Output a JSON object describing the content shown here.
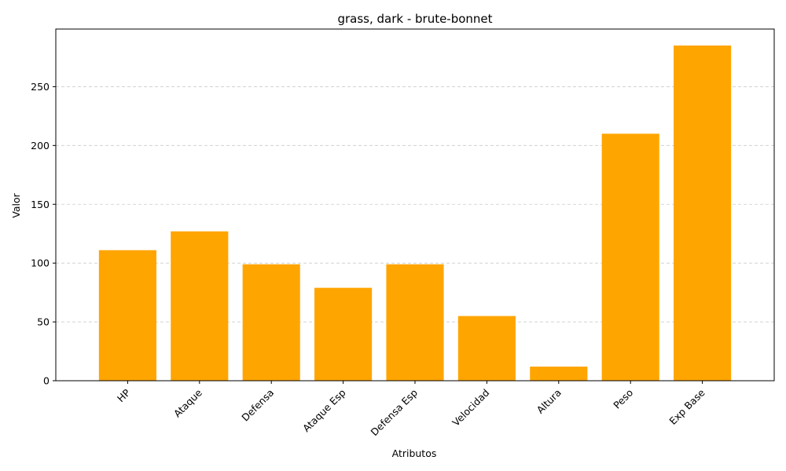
{
  "chart_data": {
    "type": "bar",
    "title": "grass, dark - brute-bonnet",
    "xlabel": "Atributos",
    "ylabel": "Valor",
    "categories": [
      "HP",
      "Ataque",
      "Defensa",
      "Ataque Esp",
      "Defensa Esp",
      "Velocidad",
      "Altura",
      "Peso",
      "Exp Base"
    ],
    "values": [
      111,
      127,
      99,
      79,
      99,
      55,
      12,
      210,
      285
    ],
    "ylim": [
      0,
      299
    ],
    "yticks": [
      0,
      50,
      100,
      150,
      200,
      250
    ],
    "grid": "y-dashed",
    "bar_color": "#FFA500"
  }
}
